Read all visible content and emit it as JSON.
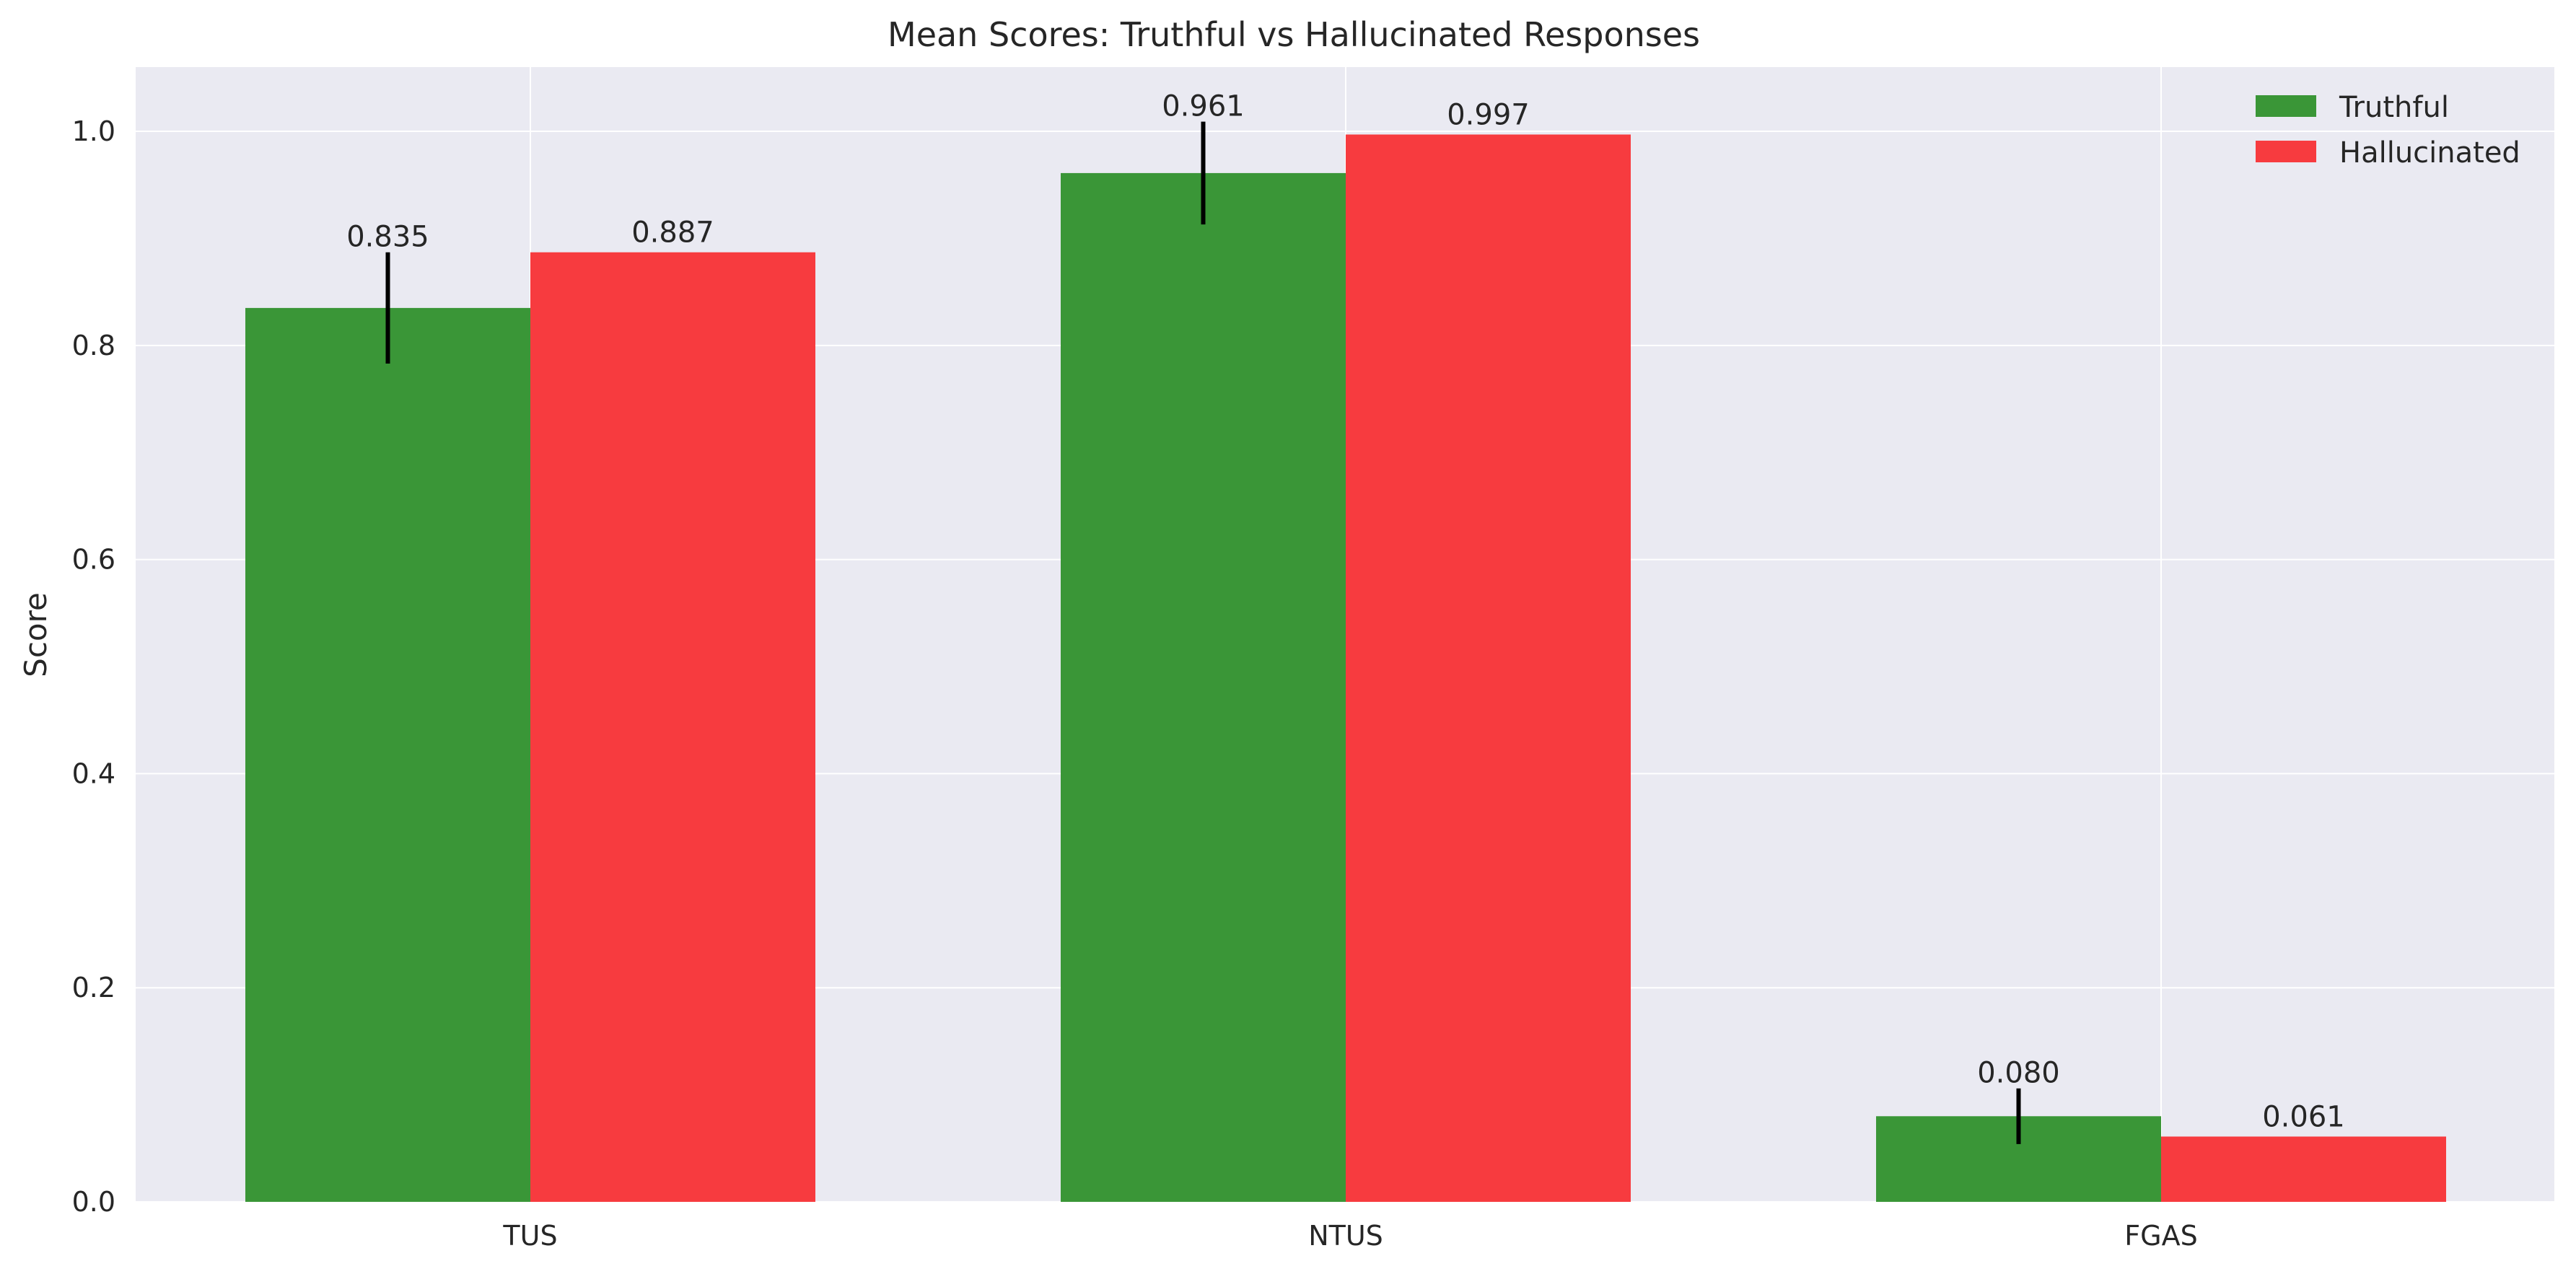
{
  "chart_data": {
    "type": "bar",
    "title": "Mean Scores: Truthful vs Hallucinated Responses",
    "xlabel": "",
    "ylabel": "Score",
    "categories": [
      "TUS",
      "NTUS",
      "FGAS"
    ],
    "series": [
      {
        "name": "Truthful",
        "color": "#3a9637",
        "values": [
          0.835,
          0.961,
          0.08
        ],
        "value_labels": [
          "0.835",
          "0.961",
          "0.080"
        ],
        "error": [
          0.052,
          0.048,
          0.026
        ]
      },
      {
        "name": "Hallucinated",
        "color": "#f73b3f",
        "values": [
          0.887,
          0.997,
          0.061
        ],
        "value_labels": [
          "0.887",
          "0.997",
          "0.061"
        ],
        "error": null
      }
    ],
    "ylim": [
      0,
      1.06
    ],
    "yticks": [
      0.0,
      0.2,
      0.4,
      0.6,
      0.8,
      1.0
    ],
    "ytick_labels": [
      "0.0",
      "0.2",
      "0.4",
      "0.6",
      "0.8",
      "1.0"
    ],
    "grid": true,
    "legend_position": "top-right",
    "background_color": "#eaeaf2",
    "grid_color": "#ffffff"
  }
}
